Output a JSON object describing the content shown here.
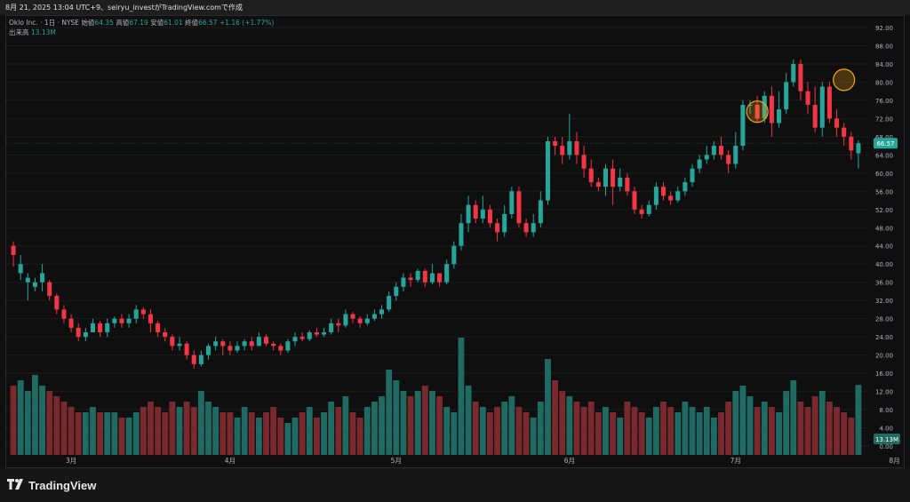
{
  "header": {
    "text": "8月 21, 2025 13:04 UTC+9、seiryu_investがTradingView.comで作成"
  },
  "legend": {
    "symbol": "Oklo Inc. · 1日 · NYSE",
    "open_label": "始値",
    "open": "64.35",
    "high_label": "高値",
    "high": "67.19",
    "low_label": "安値",
    "low": "61.01",
    "close_label": "終値",
    "close": "66.57",
    "change": "+1.16 (+1.77%)",
    "volume_label": "出来高",
    "volume": "13.13M"
  },
  "price_badge": "66.57",
  "volume_badge": "13.13M",
  "brand": "TradingView",
  "colors": {
    "up": "#26a69a",
    "down": "#f23645",
    "up_vol": "#1f6b63",
    "down_vol": "#7a2a2e",
    "highlight": "#f7a21b"
  },
  "chart_data": {
    "type": "candlestick",
    "ylim": [
      0,
      92
    ],
    "y_ticks": [
      "92.00",
      "88.00",
      "84.00",
      "80.00",
      "76.00",
      "72.00",
      "68.00",
      "64.00",
      "60.00",
      "56.00",
      "52.00",
      "48.00",
      "44.00",
      "40.00",
      "36.00",
      "32.00",
      "28.00",
      "24.00",
      "20.00",
      "16.00",
      "12.00",
      "8.00",
      "4.00",
      "0.00"
    ],
    "x_month_labels": [
      "3月",
      "4月",
      "5月",
      "6月",
      "7月",
      "8月"
    ],
    "last_price": 66.57,
    "candles": [
      [
        44,
        42,
        45,
        39.5,
        13
      ],
      [
        38,
        40,
        42,
        36.5,
        14
      ],
      [
        36,
        37,
        38,
        32,
        12
      ],
      [
        35,
        36,
        37,
        34,
        15
      ],
      [
        36,
        38,
        40,
        34,
        13
      ],
      [
        36,
        33,
        36.5,
        32,
        12
      ],
      [
        33,
        30,
        33.5,
        29,
        11
      ],
      [
        30,
        28,
        31,
        27,
        10
      ],
      [
        28,
        26,
        29,
        25,
        9
      ],
      [
        26,
        24,
        27,
        23,
        8
      ],
      [
        24,
        25,
        26,
        23,
        8
      ],
      [
        25,
        27,
        28,
        25,
        9
      ],
      [
        27,
        25,
        27.5,
        24,
        8
      ],
      [
        25,
        27,
        28,
        24,
        8
      ],
      [
        27,
        28,
        28.5,
        26,
        8
      ],
      [
        28,
        27,
        29,
        26,
        7
      ],
      [
        27,
        28,
        29,
        26,
        7
      ],
      [
        28,
        30,
        31,
        27,
        8
      ],
      [
        30,
        29,
        30.5,
        28,
        9
      ],
      [
        29,
        27,
        30,
        25,
        10
      ],
      [
        27,
        25,
        27.5,
        24,
        9
      ],
      [
        25,
        24,
        26,
        23,
        8
      ],
      [
        24,
        22,
        24.5,
        21,
        10
      ],
      [
        22,
        22.5,
        24,
        21,
        9
      ],
      [
        22.5,
        20,
        23,
        19,
        10
      ],
      [
        20,
        18,
        21,
        17,
        9
      ],
      [
        18,
        20,
        21,
        17.5,
        12
      ],
      [
        20,
        22,
        22.5,
        19,
        10
      ],
      [
        22,
        23,
        24,
        21,
        9
      ],
      [
        23,
        22,
        23.5,
        20,
        8
      ],
      [
        22,
        21,
        23,
        20,
        8
      ],
      [
        21,
        22,
        23,
        20.5,
        7
      ],
      [
        22,
        23,
        23.5,
        21,
        9
      ],
      [
        23,
        22,
        24,
        21,
        8
      ],
      [
        22,
        24,
        25,
        22,
        7
      ],
      [
        24,
        22.5,
        24.5,
        22,
        8
      ],
      [
        22.5,
        22,
        23,
        21,
        9
      ],
      [
        22,
        21,
        22.5,
        20,
        7
      ],
      [
        21,
        23,
        23.5,
        20.5,
        6
      ],
      [
        23,
        24,
        25,
        22,
        7
      ],
      [
        24,
        23.5,
        25,
        23,
        8
      ],
      [
        23.5,
        25,
        25.5,
        23,
        9
      ],
      [
        25,
        24.5,
        26,
        24,
        7
      ],
      [
        24.5,
        25,
        26,
        24,
        8
      ],
      [
        25,
        27,
        28,
        24.5,
        10
      ],
      [
        27,
        26.5,
        28,
        25,
        9
      ],
      [
        26.5,
        29,
        30,
        26,
        11
      ],
      [
        29,
        28,
        29.5,
        27,
        8
      ],
      [
        28,
        27,
        28.5,
        26,
        7
      ],
      [
        27,
        28,
        29,
        26.5,
        9
      ],
      [
        28,
        29,
        30,
        27.5,
        10
      ],
      [
        29,
        30,
        31,
        28,
        11
      ],
      [
        30,
        33,
        34,
        29.5,
        16
      ],
      [
        33,
        35,
        36,
        32,
        14
      ],
      [
        35,
        37,
        38,
        34,
        12
      ],
      [
        37,
        36.5,
        38,
        35,
        11
      ],
      [
        36.5,
        38.5,
        39,
        36,
        12
      ],
      [
        38.5,
        36,
        39,
        35,
        13
      ],
      [
        36,
        38,
        40,
        35.5,
        12
      ],
      [
        38,
        36,
        37,
        35,
        11
      ],
      [
        36,
        40,
        41,
        35.5,
        9
      ],
      [
        40,
        44,
        45,
        39,
        8
      ],
      [
        44,
        49,
        51,
        43,
        22
      ],
      [
        49,
        53,
        55,
        47,
        13
      ],
      [
        53,
        50,
        54,
        49,
        10
      ],
      [
        50,
        52,
        55,
        49,
        9
      ],
      [
        52,
        49,
        53,
        48,
        8
      ],
      [
        49,
        47,
        50,
        45,
        9
      ],
      [
        47,
        51,
        53,
        46,
        10
      ],
      [
        51,
        56,
        57,
        50,
        11
      ],
      [
        56,
        49,
        57,
        48,
        9
      ],
      [
        49,
        47,
        50,
        46,
        8
      ],
      [
        47,
        49,
        51,
        46,
        7
      ],
      [
        49,
        54,
        56,
        48,
        10
      ],
      [
        54,
        67,
        68,
        53,
        18
      ],
      [
        67,
        66,
        68,
        64,
        14
      ],
      [
        66,
        64,
        68,
        62,
        12
      ],
      [
        64,
        67,
        73,
        63,
        11
      ],
      [
        67,
        64,
        69,
        62,
        10
      ],
      [
        64,
        61,
        66,
        59,
        9
      ],
      [
        61,
        58,
        63,
        57,
        10
      ],
      [
        58,
        57,
        59,
        56,
        8
      ],
      [
        57,
        61,
        62,
        55,
        9
      ],
      [
        61,
        57,
        63,
        53,
        8
      ],
      [
        57,
        59,
        61,
        56,
        7
      ],
      [
        59,
        56,
        60,
        55,
        10
      ],
      [
        56,
        52,
        57,
        51,
        9
      ],
      [
        52,
        51,
        53,
        50,
        8
      ],
      [
        51,
        53,
        54,
        50.5,
        7
      ],
      [
        53,
        57,
        58,
        52,
        9
      ],
      [
        57,
        55,
        58,
        54,
        10
      ],
      [
        55,
        54,
        56,
        53,
        9
      ],
      [
        54,
        56,
        57,
        53.5,
        8
      ],
      [
        56,
        58,
        59,
        55,
        10
      ],
      [
        58,
        61,
        62,
        57,
        9
      ],
      [
        61,
        63,
        64,
        60,
        8
      ],
      [
        63,
        64,
        66,
        62,
        9
      ],
      [
        64,
        66,
        67,
        63,
        7
      ],
      [
        66,
        64,
        68,
        63,
        8
      ],
      [
        64,
        62,
        65,
        60,
        10
      ],
      [
        62,
        66,
        69,
        61,
        12
      ],
      [
        66,
        75,
        76,
        65,
        13
      ],
      [
        75,
        75,
        76,
        73,
        11
      ],
      [
        75,
        72,
        77,
        71,
        9
      ],
      [
        72,
        77,
        78,
        71,
        10
      ],
      [
        77,
        71,
        79,
        68,
        9
      ],
      [
        71,
        74,
        78,
        70,
        8
      ],
      [
        74,
        80,
        82,
        73,
        12
      ],
      [
        80,
        84,
        85,
        79,
        14
      ],
      [
        84,
        78,
        85,
        76,
        10
      ],
      [
        78,
        75,
        80,
        73,
        9
      ],
      [
        75,
        70,
        79,
        69,
        11
      ],
      [
        70,
        79,
        80,
        68,
        12
      ],
      [
        79,
        72,
        80,
        71,
        10
      ],
      [
        72,
        70,
        74,
        68,
        9
      ],
      [
        70,
        68,
        71,
        66,
        8
      ],
      [
        68,
        65,
        69,
        63,
        7
      ],
      [
        64.35,
        66.57,
        67.19,
        61.01,
        13.13
      ]
    ]
  }
}
